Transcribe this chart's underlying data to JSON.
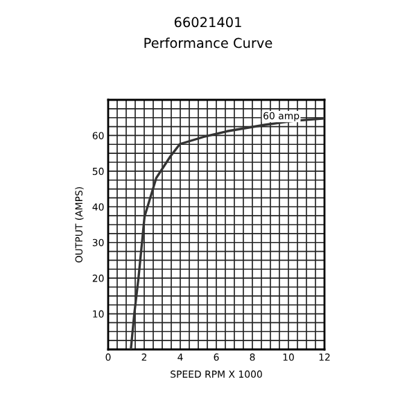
{
  "chart_data": {
    "type": "line",
    "title": "66021401",
    "subtitle": "Performance Curve",
    "xlabel": "SPEED RPM X 1000",
    "ylabel": "OUTPUT (AMPS)",
    "series": [
      {
        "color": "#333333",
        "x": [
          1.26,
          1.45,
          1.68,
          2.02,
          2.67,
          3.46,
          3.98,
          5.29,
          6.6,
          8.7,
          10.27,
          12
        ],
        "values": [
          0,
          10,
          19.9,
          37.3,
          48.1,
          54.2,
          57.6,
          59.6,
          61.2,
          63,
          64.1,
          64.8
        ]
      }
    ],
    "annotations": [
      {
        "text": "60 amp",
        "x": 9.6,
        "y": 64
      }
    ],
    "xlim": [
      0,
      12
    ],
    "ylim": [
      0,
      70
    ],
    "xticks": [
      0,
      {
        "value": 0.5,
        "label": null
      },
      2,
      {
        "value": 1,
        "label": null
      },
      {
        "value": 1.5,
        "label": null
      },
      {
        "value": 2.5,
        "label": null
      },
      {
        "value": 3,
        "label": null
      },
      {
        "value": 3.5,
        "label": null
      },
      4,
      {
        "value": 4.5,
        "label": null
      },
      {
        "value": 5,
        "label": null
      },
      {
        "value": 5.5,
        "label": null
      },
      6,
      {
        "value": 6.5,
        "label": null
      },
      {
        "value": 7,
        "label": null
      },
      {
        "value": 7.5,
        "label": null
      },
      8,
      {
        "value": 8.5,
        "label": null
      },
      {
        "value": 9,
        "label": null
      },
      {
        "value": 9.5,
        "label": null
      },
      10,
      {
        "value": 10.5,
        "label": null
      },
      {
        "value": 11,
        "label": null
      },
      {
        "value": 11.5,
        "label": null
      },
      12
    ],
    "yticks": [
      {
        "value": 0,
        "label": null
      },
      {
        "value": 2.5,
        "label": null
      },
      {
        "value": 5,
        "label": null
      },
      {
        "value": 7.5,
        "label": null
      },
      10,
      {
        "value": 12.5,
        "label": null
      },
      {
        "value": 15,
        "label": null
      },
      {
        "value": 17.5,
        "label": null
      },
      20,
      {
        "value": 22.5,
        "label": null
      },
      {
        "value": 25,
        "label": null
      },
      {
        "value": 27.5,
        "label": null
      },
      30,
      {
        "value": 32.5,
        "label": null
      },
      {
        "value": 35,
        "label": null
      },
      {
        "value": 37.5,
        "label": null
      },
      40,
      {
        "value": 42.5,
        "label": null
      },
      {
        "value": 45,
        "label": null
      },
      {
        "value": 47.5,
        "label": null
      },
      50,
      {
        "value": 52.5,
        "label": null
      },
      {
        "value": 55,
        "label": null
      },
      {
        "value": 57.5,
        "label": null
      },
      60,
      {
        "value": 62.5,
        "label": null
      },
      {
        "value": 65,
        "label": null
      },
      {
        "value": 67.5,
        "label": null
      },
      {
        "value": 70,
        "label": null
      }
    ],
    "grid": true,
    "line_style": "solid",
    "marker": "none"
  }
}
